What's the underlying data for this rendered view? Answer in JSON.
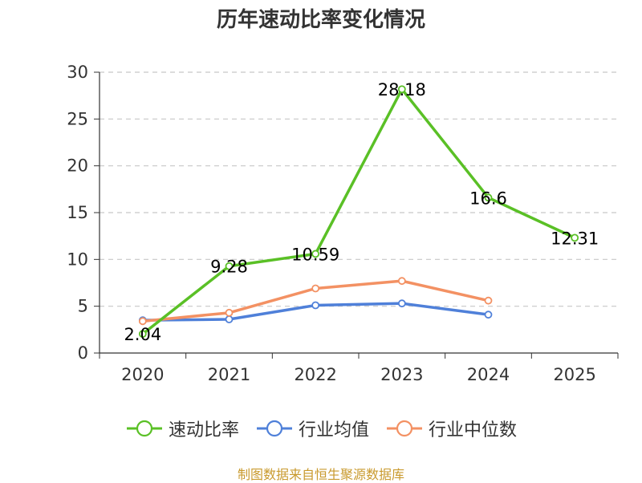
{
  "chart_data": {
    "type": "line",
    "title": "历年速动比率变化情况",
    "categories": [
      "2020",
      "2021",
      "2022",
      "2023",
      "2024",
      "2025"
    ],
    "ylim": [
      0,
      30
    ],
    "yticks": [
      0,
      5,
      10,
      15,
      20,
      25,
      30
    ],
    "grid": true,
    "legend_position": "bottom",
    "series": [
      {
        "name": "速动比率",
        "color": "#5ac026",
        "values": [
          2.04,
          9.28,
          10.59,
          28.18,
          16.6,
          12.31
        ],
        "labels": [
          "2.04",
          "9.28",
          "10.59",
          "28.18",
          "16.6",
          "12.31"
        ]
      },
      {
        "name": "行业均值",
        "color": "#4f80d9",
        "values": [
          3.5,
          3.6,
          5.1,
          5.3,
          4.1,
          null
        ]
      },
      {
        "name": "行业中位数",
        "color": "#f39163",
        "values": [
          3.4,
          4.3,
          6.9,
          7.7,
          5.6,
          null
        ]
      }
    ]
  },
  "source_note": "制图数据来自恒生聚源数据库"
}
